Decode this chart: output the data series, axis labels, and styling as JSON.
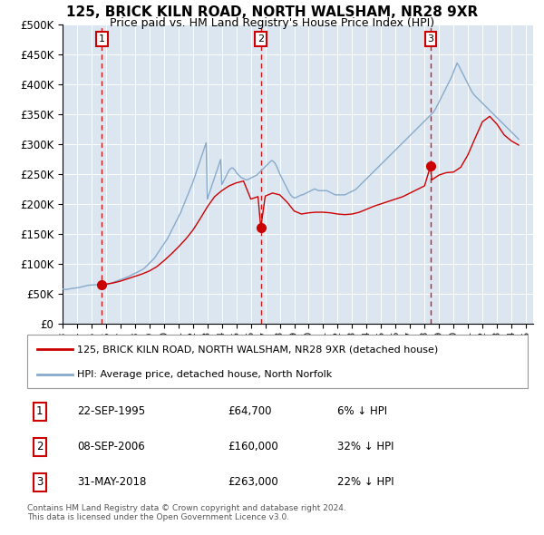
{
  "title": "125, BRICK KILN ROAD, NORTH WALSHAM, NR28 9XR",
  "subtitle": "Price paid vs. HM Land Registry's House Price Index (HPI)",
  "xlim_start": 1993.0,
  "xlim_end": 2025.5,
  "ylim": [
    0,
    500000
  ],
  "yticks": [
    0,
    50000,
    100000,
    150000,
    200000,
    250000,
    300000,
    350000,
    400000,
    450000,
    500000
  ],
  "ytick_labels": [
    "£0",
    "£50K",
    "£100K",
    "£150K",
    "£200K",
    "£250K",
    "£300K",
    "£350K",
    "£400K",
    "£450K",
    "£500K"
  ],
  "background_color": "#ffffff",
  "plot_bg_color": "#dce6f1",
  "sales": [
    {
      "num": 1,
      "year": 1995.72,
      "price": 64700,
      "date": "22-SEP-1995",
      "pct": "6%"
    },
    {
      "num": 2,
      "year": 2006.69,
      "price": 160000,
      "date": "08-SEP-2006",
      "pct": "32%"
    },
    {
      "num": 3,
      "year": 2018.41,
      "price": 263000,
      "date": "31-MAY-2018",
      "pct": "22%"
    }
  ],
  "red_line_color": "#cc0000",
  "blue_line_color": "#88aacc",
  "dot_color": "#cc0000",
  "vline_color": "#cc0000",
  "legend_label_red": "125, BRICK KILN ROAD, NORTH WALSHAM, NR28 9XR (detached house)",
  "legend_label_blue": "HPI: Average price, detached house, North Norfolk",
  "footer1": "Contains HM Land Registry data © Crown copyright and database right 2024.",
  "footer2": "This data is licensed under the Open Government Licence v3.0.",
  "hpi_years": [
    1993.0,
    1993.08,
    1993.17,
    1993.25,
    1993.33,
    1993.42,
    1993.5,
    1993.58,
    1993.67,
    1993.75,
    1993.83,
    1993.92,
    1994.0,
    1994.08,
    1994.17,
    1994.25,
    1994.33,
    1994.42,
    1994.5,
    1994.58,
    1994.67,
    1994.75,
    1994.83,
    1994.92,
    1995.0,
    1995.08,
    1995.17,
    1995.25,
    1995.33,
    1995.42,
    1995.5,
    1995.58,
    1995.67,
    1995.75,
    1995.83,
    1995.92,
    1996.0,
    1996.08,
    1996.17,
    1996.25,
    1996.33,
    1996.42,
    1996.5,
    1996.58,
    1996.67,
    1996.75,
    1996.83,
    1996.92,
    1997.0,
    1997.08,
    1997.17,
    1997.25,
    1997.33,
    1997.42,
    1997.5,
    1997.58,
    1997.67,
    1997.75,
    1997.83,
    1997.92,
    1998.0,
    1998.08,
    1998.17,
    1998.25,
    1998.33,
    1998.42,
    1998.5,
    1998.58,
    1998.67,
    1998.75,
    1998.83,
    1998.92,
    1999.0,
    1999.08,
    1999.17,
    1999.25,
    1999.33,
    1999.42,
    1999.5,
    1999.58,
    1999.67,
    1999.75,
    1999.83,
    1999.92,
    2000.0,
    2000.08,
    2000.17,
    2000.25,
    2000.33,
    2000.42,
    2000.5,
    2000.58,
    2000.67,
    2000.75,
    2000.83,
    2000.92,
    2001.0,
    2001.08,
    2001.17,
    2001.25,
    2001.33,
    2001.42,
    2001.5,
    2001.58,
    2001.67,
    2001.75,
    2001.83,
    2001.92,
    2002.0,
    2002.08,
    2002.17,
    2002.25,
    2002.33,
    2002.42,
    2002.5,
    2002.58,
    2002.67,
    2002.75,
    2002.83,
    2002.92,
    2003.0,
    2003.08,
    2003.17,
    2003.25,
    2003.33,
    2003.42,
    2003.5,
    2003.58,
    2003.67,
    2003.75,
    2003.83,
    2003.92,
    2004.0,
    2004.08,
    2004.17,
    2004.25,
    2004.33,
    2004.42,
    2004.5,
    2004.58,
    2004.67,
    2004.75,
    2004.83,
    2004.92,
    2005.0,
    2005.08,
    2005.17,
    2005.25,
    2005.33,
    2005.42,
    2005.5,
    2005.58,
    2005.67,
    2005.75,
    2005.83,
    2005.92,
    2006.0,
    2006.08,
    2006.17,
    2006.25,
    2006.33,
    2006.42,
    2006.5,
    2006.58,
    2006.67,
    2006.75,
    2006.83,
    2006.92,
    2007.0,
    2007.08,
    2007.17,
    2007.25,
    2007.33,
    2007.42,
    2007.5,
    2007.58,
    2007.67,
    2007.75,
    2007.83,
    2007.92,
    2008.0,
    2008.08,
    2008.17,
    2008.25,
    2008.33,
    2008.42,
    2008.5,
    2008.58,
    2008.67,
    2008.75,
    2008.83,
    2008.92,
    2009.0,
    2009.08,
    2009.17,
    2009.25,
    2009.33,
    2009.42,
    2009.5,
    2009.58,
    2009.67,
    2009.75,
    2009.83,
    2009.92,
    2010.0,
    2010.08,
    2010.17,
    2010.25,
    2010.33,
    2010.42,
    2010.5,
    2010.58,
    2010.67,
    2010.75,
    2010.83,
    2010.92,
    2011.0,
    2011.08,
    2011.17,
    2011.25,
    2011.33,
    2011.42,
    2011.5,
    2011.58,
    2011.67,
    2011.75,
    2011.83,
    2011.92,
    2012.0,
    2012.08,
    2012.17,
    2012.25,
    2012.33,
    2012.42,
    2012.5,
    2012.58,
    2012.67,
    2012.75,
    2012.83,
    2012.92,
    2013.0,
    2013.08,
    2013.17,
    2013.25,
    2013.33,
    2013.42,
    2013.5,
    2013.58,
    2013.67,
    2013.75,
    2013.83,
    2013.92,
    2014.0,
    2014.08,
    2014.17,
    2014.25,
    2014.33,
    2014.42,
    2014.5,
    2014.58,
    2014.67,
    2014.75,
    2014.83,
    2014.92,
    2015.0,
    2015.08,
    2015.17,
    2015.25,
    2015.33,
    2015.42,
    2015.5,
    2015.58,
    2015.67,
    2015.75,
    2015.83,
    2015.92,
    2016.0,
    2016.08,
    2016.17,
    2016.25,
    2016.33,
    2016.42,
    2016.5,
    2016.58,
    2016.67,
    2016.75,
    2016.83,
    2016.92,
    2017.0,
    2017.08,
    2017.17,
    2017.25,
    2017.33,
    2017.42,
    2017.5,
    2017.58,
    2017.67,
    2017.75,
    2017.83,
    2017.92,
    2018.0,
    2018.08,
    2018.17,
    2018.25,
    2018.33,
    2018.42,
    2018.5,
    2018.58,
    2018.67,
    2018.75,
    2018.83,
    2018.92,
    2019.0,
    2019.08,
    2019.17,
    2019.25,
    2019.33,
    2019.42,
    2019.5,
    2019.58,
    2019.67,
    2019.75,
    2019.83,
    2019.92,
    2020.0,
    2020.08,
    2020.17,
    2020.25,
    2020.33,
    2020.42,
    2020.5,
    2020.58,
    2020.67,
    2020.75,
    2020.83,
    2020.92,
    2021.0,
    2021.08,
    2021.17,
    2021.25,
    2021.33,
    2021.42,
    2021.5,
    2021.58,
    2021.67,
    2021.75,
    2021.83,
    2021.92,
    2022.0,
    2022.08,
    2022.17,
    2022.25,
    2022.33,
    2022.42,
    2022.5,
    2022.58,
    2022.67,
    2022.75,
    2022.83,
    2022.92,
    2023.0,
    2023.08,
    2023.17,
    2023.25,
    2023.33,
    2023.42,
    2023.5,
    2023.58,
    2023.67,
    2023.75,
    2023.83,
    2023.92,
    2024.0,
    2024.08,
    2024.17,
    2024.25,
    2024.33,
    2024.42,
    2024.5
  ],
  "hpi_values": [
    58000,
    57500,
    57200,
    57000,
    57300,
    57800,
    58200,
    58500,
    58800,
    59000,
    59200,
    59500,
    60000,
    60200,
    60500,
    61000,
    61500,
    62000,
    62500,
    63000,
    63500,
    64000,
    64200,
    64400,
    64500,
    64600,
    64700,
    64900,
    65100,
    65200,
    65000,
    64800,
    64700,
    64600,
    64500,
    64700,
    65000,
    65500,
    66000,
    66800,
    67500,
    68200,
    69000,
    69800,
    70500,
    71200,
    72000,
    72800,
    73500,
    74200,
    75000,
    75800,
    76500,
    77200,
    78000,
    79000,
    80000,
    81000,
    82000,
    83000,
    84000,
    85000,
    86000,
    87000,
    88000,
    89000,
    90000,
    91500,
    93000,
    95000,
    97000,
    99000,
    101000,
    103000,
    105000,
    107000,
    109000,
    112000,
    115000,
    118000,
    121000,
    124000,
    127000,
    130000,
    133000,
    136000,
    139000,
    142000,
    146000,
    150000,
    154000,
    158000,
    162000,
    166000,
    170000,
    174000,
    178000,
    182000,
    186000,
    191000,
    196000,
    201000,
    206000,
    211000,
    216000,
    221000,
    226000,
    231000,
    236000,
    242000,
    248000,
    254000,
    260000,
    266000,
    272000,
    278000,
    284000,
    290000,
    296000,
    302000,
    208000,
    214000,
    220000,
    226000,
    232000,
    238000,
    244000,
    250000,
    256000,
    262000,
    268000,
    274000,
    232000,
    236000,
    240000,
    244000,
    248000,
    252000,
    256000,
    258000,
    260000,
    260000,
    258000,
    256000,
    252000,
    250000,
    248000,
    246000,
    244000,
    243000,
    242000,
    241000,
    240000,
    240000,
    241000,
    242000,
    243000,
    244000,
    245000,
    246000,
    247000,
    248000,
    250000,
    252000,
    254000,
    256000,
    258000,
    260000,
    262000,
    264000,
    266000,
    268000,
    270000,
    272000,
    272000,
    270000,
    268000,
    264000,
    260000,
    255000,
    250000,
    246000,
    242000,
    238000,
    234000,
    230000,
    226000,
    222000,
    218000,
    215000,
    213000,
    211000,
    210000,
    210000,
    211000,
    212000,
    213000,
    214000,
    215000,
    215000,
    216000,
    217000,
    218000,
    219000,
    220000,
    221000,
    222000,
    223000,
    224000,
    225000,
    224000,
    223000,
    222000,
    222000,
    222000,
    222000,
    222000,
    222000,
    222000,
    222000,
    221000,
    220000,
    219000,
    218000,
    217000,
    216000,
    215000,
    215000,
    215000,
    215000,
    215000,
    215000,
    215000,
    215000,
    215000,
    216000,
    217000,
    218000,
    219000,
    220000,
    221000,
    222000,
    223000,
    224000,
    226000,
    228000,
    230000,
    232000,
    234000,
    236000,
    238000,
    240000,
    242000,
    244000,
    246000,
    248000,
    250000,
    252000,
    254000,
    256000,
    258000,
    260000,
    262000,
    264000,
    266000,
    268000,
    270000,
    272000,
    274000,
    276000,
    278000,
    280000,
    282000,
    284000,
    286000,
    288000,
    290000,
    292000,
    294000,
    296000,
    298000,
    300000,
    302000,
    304000,
    306000,
    308000,
    310000,
    312000,
    314000,
    316000,
    318000,
    320000,
    322000,
    324000,
    326000,
    328000,
    330000,
    332000,
    334000,
    336000,
    338000,
    340000,
    342000,
    344000,
    346000,
    348000,
    350000,
    352000,
    355000,
    358000,
    362000,
    366000,
    370000,
    374000,
    378000,
    382000,
    386000,
    390000,
    394000,
    398000,
    402000,
    406000,
    410000,
    415000,
    420000,
    425000,
    430000,
    435000,
    432000,
    428000,
    424000,
    420000,
    416000,
    412000,
    408000,
    404000,
    400000,
    396000,
    392000,
    388000,
    385000,
    382000,
    380000,
    378000,
    376000,
    374000,
    372000,
    370000,
    368000,
    366000,
    364000,
    362000,
    360000,
    358000,
    356000,
    354000,
    352000,
    350000,
    348000,
    346000,
    344000,
    342000,
    340000,
    338000,
    336000,
    334000,
    332000,
    330000,
    328000,
    326000,
    324000,
    322000,
    320000,
    318000,
    316000,
    314000,
    312000,
    310000,
    308000
  ],
  "red_years": [
    1995.72,
    1996.0,
    1996.5,
    1997.0,
    1997.5,
    1998.0,
    1998.5,
    1999.0,
    1999.5,
    2000.0,
    2000.5,
    2001.0,
    2001.5,
    2002.0,
    2002.5,
    2003.0,
    2003.5,
    2004.0,
    2004.5,
    2005.0,
    2005.5,
    2006.0,
    2006.5,
    2006.69,
    2007.0,
    2007.5,
    2008.0,
    2008.5,
    2009.0,
    2009.5,
    2010.0,
    2010.5,
    2011.0,
    2011.5,
    2012.0,
    2012.5,
    2013.0,
    2013.5,
    2014.0,
    2014.5,
    2015.0,
    2015.5,
    2016.0,
    2016.5,
    2017.0,
    2017.5,
    2018.0,
    2018.41,
    2018.5,
    2019.0,
    2019.5,
    2020.0,
    2020.5,
    2021.0,
    2021.5,
    2022.0,
    2022.5,
    2023.0,
    2023.5,
    2024.0,
    2024.5
  ],
  "red_values": [
    64700,
    66000,
    68000,
    71000,
    75000,
    79000,
    83000,
    88000,
    95000,
    105000,
    116000,
    128000,
    141000,
    156000,
    175000,
    195000,
    212000,
    222000,
    230000,
    235000,
    238000,
    208000,
    212000,
    160000,
    213000,
    218000,
    215000,
    203000,
    188000,
    183000,
    185000,
    186000,
    186000,
    185000,
    183000,
    182000,
    183000,
    186000,
    191000,
    196000,
    200000,
    204000,
    208000,
    212000,
    218000,
    224000,
    230000,
    263000,
    240000,
    248000,
    252000,
    253000,
    261000,
    282000,
    310000,
    337000,
    346000,
    333000,
    315000,
    305000,
    298000
  ]
}
